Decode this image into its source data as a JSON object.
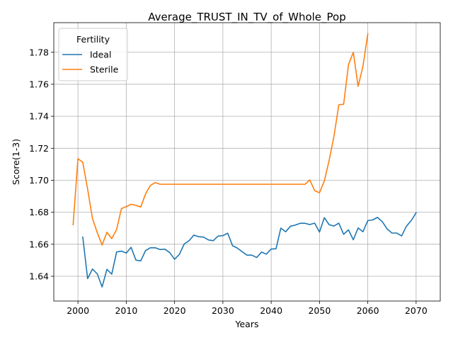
{
  "chart_data": {
    "type": "line",
    "title": "Average_TRUST_IN_TV_of_Whole_Pop",
    "xlabel": "Years",
    "ylabel": "Score(1-3)",
    "xlim": [
      1995,
      2075
    ],
    "ylim": [
      1.6245,
      1.7985
    ],
    "x_ticks": [
      2000,
      2010,
      2020,
      2030,
      2040,
      2050,
      2060,
      2070
    ],
    "y_ticks": [
      1.64,
      1.66,
      1.68,
      1.7,
      1.72,
      1.74,
      1.76,
      1.78
    ],
    "y_tick_labels": [
      "1.64",
      "1.66",
      "1.68",
      "1.70",
      "1.72",
      "1.74",
      "1.76",
      "1.78"
    ],
    "grid": true,
    "legend": {
      "title": "Fertility",
      "placement": "top-left"
    },
    "series": [
      {
        "name": "Ideal",
        "color": "#1f77b4",
        "x": [
          2001,
          2002,
          2003,
          2004,
          2005,
          2006,
          2007,
          2008,
          2009,
          2010,
          2011,
          2012,
          2013,
          2014,
          2015,
          2016,
          2017,
          2018,
          2019,
          2020,
          2021,
          2022,
          2023,
          2024,
          2025,
          2026,
          2027,
          2028,
          2029,
          2030,
          2031,
          2032,
          2033,
          2034,
          2035,
          2036,
          2037,
          2038,
          2039,
          2040,
          2041,
          2042,
          2043,
          2044,
          2045,
          2046,
          2047,
          2048,
          2049,
          2050,
          2051,
          2052,
          2053,
          2054,
          2055,
          2056,
          2057,
          2058,
          2059,
          2060,
          2061,
          2062,
          2063,
          2064,
          2065,
          2066,
          2067,
          2068,
          2069,
          2070
        ],
        "y": [
          1.6645,
          1.6385,
          1.6445,
          1.6415,
          1.6333,
          1.6443,
          1.6413,
          1.6552,
          1.6557,
          1.6545,
          1.6581,
          1.6501,
          1.6496,
          1.6561,
          1.6578,
          1.6578,
          1.6567,
          1.6569,
          1.6548,
          1.6506,
          1.6537,
          1.6602,
          1.6622,
          1.6657,
          1.6647,
          1.6645,
          1.6627,
          1.6622,
          1.6651,
          1.6654,
          1.6669,
          1.6591,
          1.6576,
          1.6553,
          1.6532,
          1.6532,
          1.6517,
          1.6551,
          1.6538,
          1.657,
          1.6572,
          1.6701,
          1.6678,
          1.6713,
          1.672,
          1.6731,
          1.6731,
          1.6723,
          1.6732,
          1.6676,
          1.6766,
          1.6722,
          1.6714,
          1.6732,
          1.6662,
          1.669,
          1.6628,
          1.6702,
          1.6678,
          1.6748,
          1.6752,
          1.6768,
          1.6741,
          1.6696,
          1.667,
          1.667,
          1.6652,
          1.6713,
          1.6748,
          1.6797
        ]
      },
      {
        "name": "Sterile",
        "color": "#ff7f0e",
        "x": [
          1999,
          2000,
          2001,
          2002,
          2003,
          2004,
          2005,
          2006,
          2007,
          2008,
          2009,
          2010,
          2011,
          2012,
          2013,
          2014,
          2015,
          2016,
          2017,
          2018,
          2019,
          2020,
          2025,
          2030,
          2035,
          2040,
          2045,
          2046,
          2047,
          2048,
          2049,
          2050,
          2051,
          2052,
          2053,
          2054,
          2055,
          2056,
          2057,
          2058,
          2059,
          2060
        ],
        "y": [
          1.6722,
          1.7135,
          1.7112,
          1.6945,
          1.6762,
          1.6672,
          1.6595,
          1.6675,
          1.6635,
          1.6692,
          1.6823,
          1.6835,
          1.685,
          1.6843,
          1.6833,
          1.6915,
          1.6968,
          1.6985,
          1.6975,
          1.6975,
          1.6975,
          1.6975,
          1.6975,
          1.6975,
          1.6975,
          1.6975,
          1.6975,
          1.6975,
          1.6975,
          1.7002,
          1.6935,
          1.6922,
          1.6995,
          1.7125,
          1.7275,
          1.7472,
          1.7475,
          1.7722,
          1.78,
          1.7587,
          1.7712,
          1.7915
        ]
      }
    ]
  }
}
